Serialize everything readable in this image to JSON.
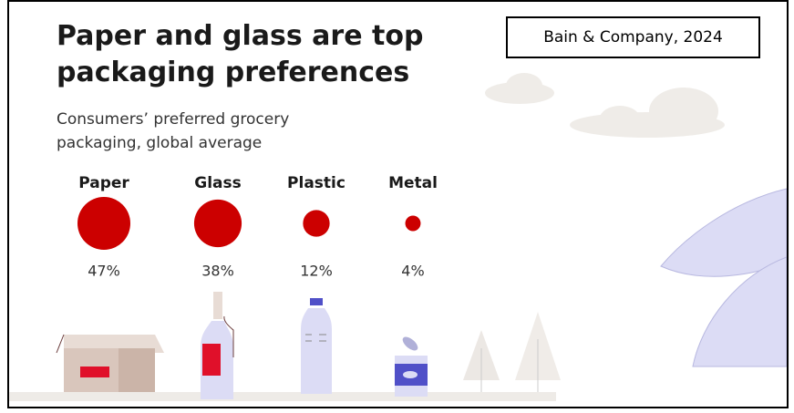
{
  "chart_data": {
    "type": "bubble",
    "title": "Paper and glass are top packaging preferences",
    "subtitle": "Consumers’ preferred grocery packaging, global average",
    "source": "Bain & Company, 2024",
    "categories": [
      "Paper",
      "Glass",
      "Plastic",
      "Metal"
    ],
    "values": [
      47,
      38,
      12,
      4
    ],
    "value_labels": [
      "47%",
      "38%",
      "12%",
      "4%"
    ],
    "color": "#cc0000"
  }
}
